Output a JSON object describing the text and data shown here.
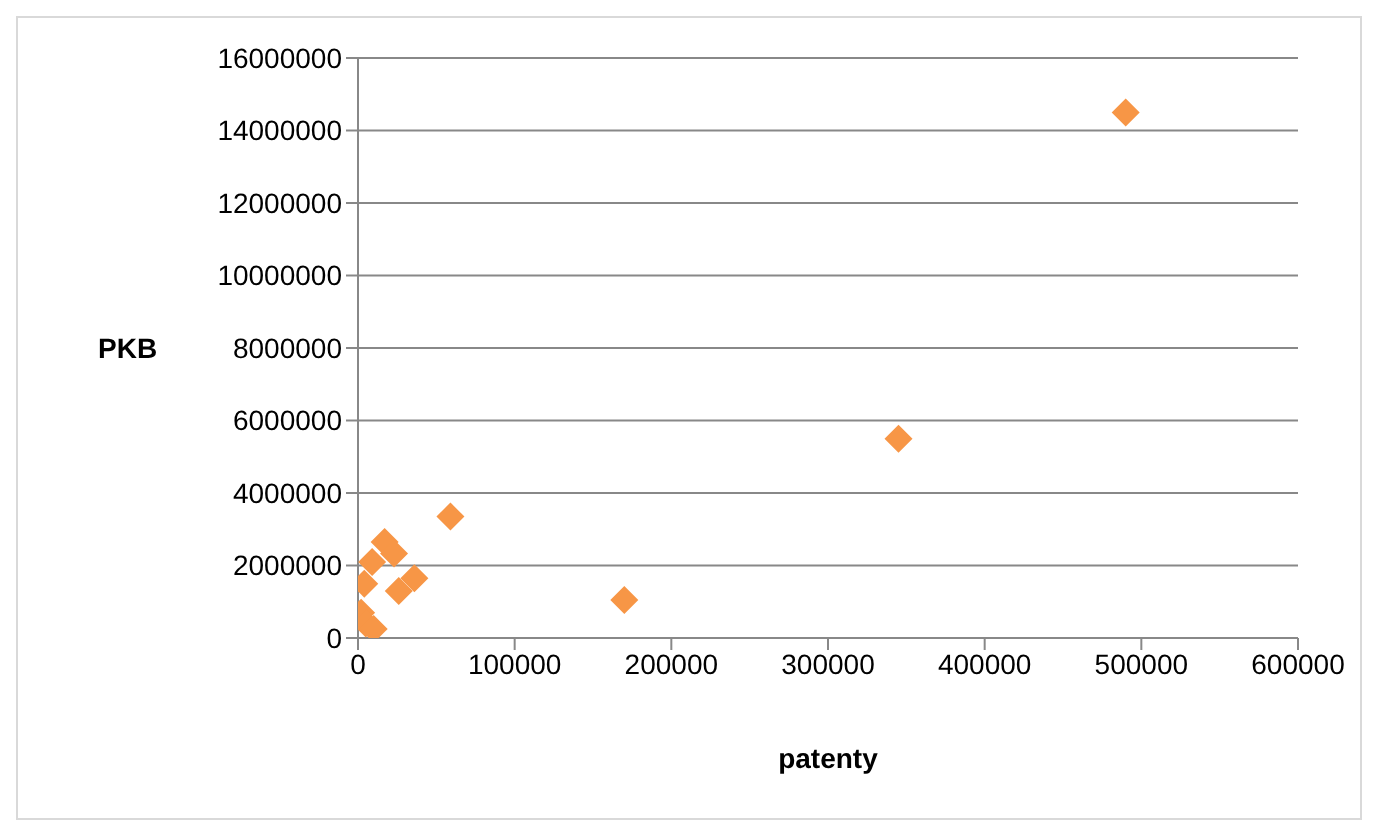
{
  "chart_data": {
    "type": "scatter",
    "xlabel": "patenty",
    "ylabel": "PKB",
    "marker": "diamond",
    "grid": "y",
    "xlim": [
      0,
      600000
    ],
    "xticks": [
      0,
      100000,
      200000,
      300000,
      400000,
      500000,
      600000
    ],
    "ylim": [
      0,
      16000000
    ],
    "yticks": [
      0,
      2000000,
      4000000,
      6000000,
      8000000,
      10000000,
      12000000,
      14000000,
      16000000
    ],
    "series": [
      {
        "color": "#f79646",
        "x": [
          490000,
          345000,
          170000,
          59000,
          17000,
          23000,
          9000,
          36000,
          26000,
          4000,
          2000,
          5000,
          10000
        ],
        "values": [
          14500000,
          5500000,
          1050000,
          3350000,
          2650000,
          2330000,
          2100000,
          1650000,
          1300000,
          1500000,
          700000,
          400000,
          250000
        ]
      }
    ]
  }
}
